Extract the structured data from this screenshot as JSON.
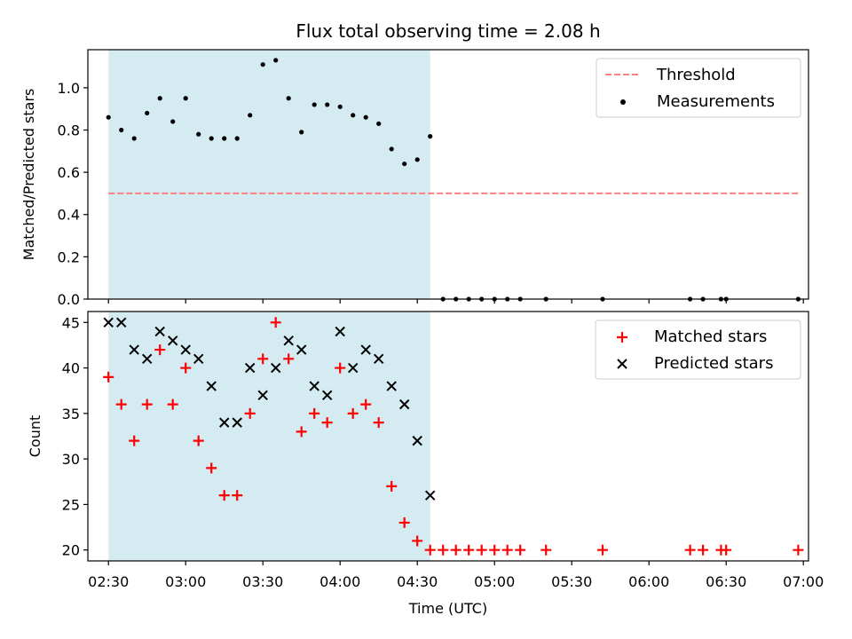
{
  "title": "Flux total observing time = 2.08 h",
  "colors": {
    "shade": "#add8e6",
    "threshold": "#ff7f7f",
    "measurement": "#000000",
    "matched": "#ff0000",
    "predicted": "#000000"
  },
  "chart_data": [
    {
      "type": "scatter",
      "panel": "top",
      "xlabel": "",
      "ylabel": "Matched/Predicted stars",
      "xlim": [
        "02:22",
        "07:02"
      ],
      "ylim": [
        0,
        1.18
      ],
      "yticks": [
        0.0,
        0.2,
        0.4,
        0.6,
        0.8,
        1.0
      ],
      "ytick_labels": [
        "0.0",
        "0.2",
        "0.4",
        "0.6",
        "0.8",
        "1.0"
      ],
      "xtick_labels_shown": false,
      "shaded_interval": [
        "02:30",
        "04:35"
      ],
      "legend_position": "top-right",
      "threshold": {
        "name": "Threshold",
        "value": 0.5,
        "x_range": [
          "02:30",
          "06:58"
        ],
        "style": "dashed"
      },
      "series": [
        {
          "name": "Measurements",
          "marker": "dot",
          "x": [
            "02:30",
            "02:35",
            "02:40",
            "02:45",
            "02:50",
            "02:55",
            "03:00",
            "03:05",
            "03:10",
            "03:15",
            "03:20",
            "03:25",
            "03:30",
            "03:35",
            "03:40",
            "03:45",
            "03:50",
            "03:55",
            "04:00",
            "04:05",
            "04:10",
            "04:15",
            "04:20",
            "04:25",
            "04:30",
            "04:35",
            "04:40",
            "04:45",
            "04:50",
            "04:55",
            "05:00",
            "05:05",
            "05:10",
            "05:20",
            "05:42",
            "06:16",
            "06:21",
            "06:28",
            "06:30",
            "06:58"
          ],
          "y": [
            0.86,
            0.8,
            0.76,
            0.88,
            0.95,
            0.84,
            0.95,
            0.78,
            0.76,
            0.76,
            0.76,
            0.87,
            1.11,
            1.13,
            0.95,
            0.79,
            0.92,
            0.92,
            0.91,
            0.87,
            0.86,
            0.83,
            0.71,
            0.64,
            0.66,
            0.77,
            0,
            0,
            0,
            0,
            0,
            0,
            0,
            0,
            0,
            0,
            0,
            0,
            0,
            0
          ]
        }
      ]
    },
    {
      "type": "scatter",
      "panel": "bottom",
      "xlabel": "Time (UTC)",
      "ylabel": "Count",
      "xlim": [
        "02:22",
        "07:02"
      ],
      "ylim": [
        18.8,
        46.2
      ],
      "yticks": [
        20,
        25,
        30,
        35,
        40,
        45
      ],
      "ytick_labels": [
        "20",
        "25",
        "30",
        "35",
        "40",
        "45"
      ],
      "xticks": [
        "02:30",
        "03:00",
        "03:30",
        "04:00",
        "04:30",
        "05:00",
        "05:30",
        "06:00",
        "06:30",
        "07:00"
      ],
      "xtick_labels": [
        "02:30",
        "03:00",
        "03:30",
        "04:00",
        "04:30",
        "05:00",
        "05:30",
        "06:00",
        "06:30",
        "07:00"
      ],
      "shaded_interval": [
        "02:30",
        "04:35"
      ],
      "legend_position": "top-right",
      "series": [
        {
          "name": "Matched stars",
          "marker": "plus",
          "x": [
            "02:30",
            "02:35",
            "02:40",
            "02:45",
            "02:50",
            "02:55",
            "03:00",
            "03:05",
            "03:10",
            "03:15",
            "03:20",
            "03:25",
            "03:30",
            "03:35",
            "03:40",
            "03:45",
            "03:50",
            "03:55",
            "04:00",
            "04:05",
            "04:10",
            "04:15",
            "04:20",
            "04:25",
            "04:30",
            "04:35",
            "04:40",
            "04:45",
            "04:50",
            "04:55",
            "05:00",
            "05:05",
            "05:10",
            "05:20",
            "05:42",
            "06:16",
            "06:21",
            "06:28",
            "06:30",
            "06:58"
          ],
          "y": [
            39,
            36,
            32,
            36,
            42,
            36,
            40,
            32,
            29,
            26,
            26,
            35,
            41,
            45,
            41,
            33,
            35,
            34,
            40,
            35,
            36,
            34,
            27,
            23,
            21,
            20,
            20,
            20,
            20,
            20,
            20,
            20,
            20,
            20,
            20,
            20,
            20,
            20,
            20,
            20
          ]
        },
        {
          "name": "Predicted stars",
          "marker": "x",
          "x": [
            "02:30",
            "02:35",
            "02:40",
            "02:45",
            "02:50",
            "02:55",
            "03:00",
            "03:05",
            "03:10",
            "03:15",
            "03:20",
            "03:25",
            "03:30",
            "03:35",
            "03:40",
            "03:45",
            "03:50",
            "03:55",
            "04:00",
            "04:05",
            "04:10",
            "04:15",
            "04:20",
            "04:25",
            "04:30",
            "04:35"
          ],
          "y": [
            45,
            45,
            42,
            41,
            44,
            43,
            42,
            41,
            38,
            34,
            34,
            40,
            37,
            40,
            43,
            42,
            38,
            37,
            44,
            40,
            42,
            41,
            38,
            36,
            32,
            26
          ]
        }
      ]
    }
  ]
}
